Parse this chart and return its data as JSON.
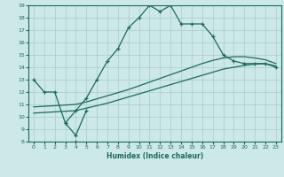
{
  "title": "",
  "xlabel": "Humidex (Indice chaleur)",
  "bg_color": "#cce8e8",
  "grid_color": "#aacccc",
  "line_color": "#1a6b5a",
  "xlim": [
    -0.5,
    23.5
  ],
  "ylim": [
    8,
    19
  ],
  "xticks": [
    0,
    1,
    2,
    3,
    4,
    5,
    6,
    7,
    8,
    9,
    10,
    11,
    12,
    13,
    14,
    15,
    16,
    17,
    18,
    19,
    20,
    21,
    22,
    23
  ],
  "yticks": [
    8,
    9,
    10,
    11,
    12,
    13,
    14,
    15,
    16,
    17,
    18,
    19
  ],
  "s1x": [
    0,
    1,
    2,
    3,
    4,
    5
  ],
  "s1y": [
    13,
    12,
    12,
    9.5,
    8.5,
    10.5
  ],
  "s_low_pt_x": [
    4
  ],
  "s_low_pt_y": [
    8
  ],
  "s2x": [
    3,
    4,
    5,
    6,
    7,
    8,
    9,
    10,
    11,
    12,
    13,
    14,
    15,
    16,
    17,
    18,
    19,
    20,
    21,
    22,
    23
  ],
  "s2y": [
    9.5,
    10.5,
    11.5,
    13,
    14.5,
    15.5,
    17.2,
    18,
    19,
    18.5,
    19,
    17.5,
    17.5,
    17.5,
    16.5,
    15,
    14.5,
    14.3,
    14.3,
    14.3,
    14
  ],
  "s3x": [
    0,
    4,
    5,
    6,
    7,
    8,
    9,
    10,
    11,
    12,
    13,
    14,
    15,
    16,
    17,
    18,
    19,
    20,
    21,
    22,
    23
  ],
  "s3y": [
    10.3,
    10.5,
    10.7,
    10.9,
    11.1,
    11.35,
    11.6,
    11.85,
    12.1,
    12.35,
    12.6,
    12.85,
    13.1,
    13.35,
    13.6,
    13.85,
    14.0,
    14.15,
    14.25,
    14.3,
    14.1
  ],
  "s4x": [
    0,
    4,
    5,
    6,
    7,
    8,
    9,
    10,
    11,
    12,
    13,
    14,
    15,
    16,
    17,
    18,
    19,
    20,
    21,
    22,
    23
  ],
  "s4y": [
    10.8,
    11.0,
    11.2,
    11.45,
    11.7,
    11.95,
    12.2,
    12.5,
    12.8,
    13.1,
    13.4,
    13.7,
    14.0,
    14.3,
    14.55,
    14.75,
    14.85,
    14.85,
    14.75,
    14.6,
    14.3
  ]
}
